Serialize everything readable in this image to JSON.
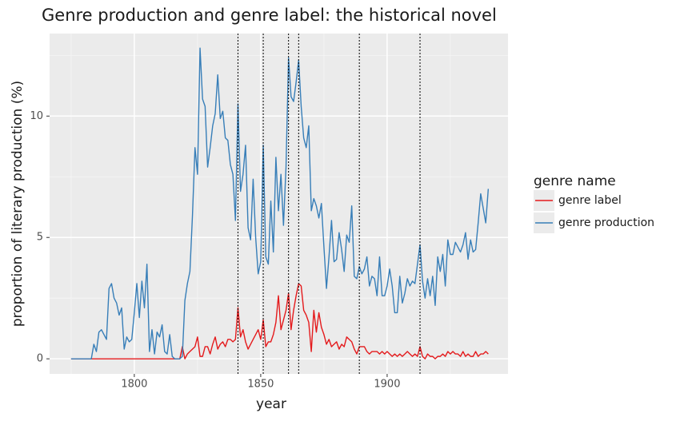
{
  "chart_data": {
    "type": "line",
    "title": "Genre production and genre label: the historical novel",
    "xlabel": "year",
    "ylabel": "proportion of literary production (%)",
    "legend_title": "genre name",
    "legend": "right",
    "grid": true,
    "xlim": [
      1766.5,
      1947.8
    ],
    "ylim": [
      -0.62,
      13.4
    ],
    "xticks": [
      1800,
      1850,
      1900
    ],
    "yticks": [
      0,
      5,
      10
    ],
    "minor_xticks": [
      1775,
      1825,
      1875,
      1925
    ],
    "minor_yticks": [
      2.5,
      7.5,
      12.5
    ],
    "vlines": [
      1841,
      1851,
      1861,
      1865,
      1889,
      1913
    ],
    "x": [
      1775,
      1776,
      1777,
      1778,
      1779,
      1780,
      1781,
      1782,
      1783,
      1784,
      1785,
      1786,
      1787,
      1788,
      1789,
      1790,
      1791,
      1792,
      1793,
      1794,
      1795,
      1796,
      1797,
      1798,
      1799,
      1800,
      1801,
      1802,
      1803,
      1804,
      1805,
      1806,
      1807,
      1808,
      1809,
      1810,
      1811,
      1812,
      1813,
      1814,
      1815,
      1816,
      1817,
      1818,
      1819,
      1820,
      1821,
      1822,
      1823,
      1824,
      1825,
      1826,
      1827,
      1828,
      1829,
      1830,
      1831,
      1832,
      1833,
      1834,
      1835,
      1836,
      1837,
      1838,
      1839,
      1840,
      1841,
      1842,
      1843,
      1844,
      1845,
      1846,
      1847,
      1848,
      1849,
      1850,
      1851,
      1852,
      1853,
      1854,
      1855,
      1856,
      1857,
      1858,
      1859,
      1860,
      1861,
      1862,
      1863,
      1864,
      1865,
      1866,
      1867,
      1868,
      1869,
      1870,
      1871,
      1872,
      1873,
      1874,
      1875,
      1876,
      1877,
      1878,
      1879,
      1880,
      1881,
      1882,
      1883,
      1884,
      1885,
      1886,
      1887,
      1888,
      1889,
      1890,
      1891,
      1892,
      1893,
      1894,
      1895,
      1896,
      1897,
      1898,
      1899,
      1900,
      1901,
      1902,
      1903,
      1904,
      1905,
      1906,
      1907,
      1908,
      1909,
      1910,
      1911,
      1912,
      1913,
      1914,
      1915,
      1916,
      1917,
      1918,
      1919,
      1920,
      1921,
      1922,
      1923,
      1924,
      1925,
      1926,
      1927,
      1928,
      1929,
      1930,
      1931,
      1932,
      1933,
      1934,
      1935,
      1936,
      1937,
      1938,
      1939,
      1940
    ],
    "series": [
      {
        "name": "genre label",
        "color": "#E41A1C",
        "values": [
          0,
          0,
          0,
          0,
          0,
          0,
          0,
          0,
          0,
          0,
          0,
          0,
          0,
          0,
          0,
          0,
          0,
          0,
          0,
          0,
          0,
          0,
          0,
          0,
          0,
          0,
          0,
          0,
          0,
          0,
          0,
          0,
          0,
          0,
          0,
          0,
          0,
          0,
          0,
          0,
          0,
          0,
          0,
          0,
          0.5,
          0,
          0.2,
          0.3,
          0.4,
          0.5,
          0.9,
          0.1,
          0.1,
          0.5,
          0.5,
          0.2,
          0.6,
          0.9,
          0.4,
          0.6,
          0.7,
          0.5,
          0.8,
          0.8,
          0.7,
          0.8,
          2.1,
          0.9,
          1.2,
          0.7,
          0.4,
          0.6,
          0.8,
          1.0,
          1.2,
          0.8,
          1.6,
          0.5,
          0.7,
          0.7,
          1.0,
          1.5,
          2.6,
          1.2,
          1.6,
          2.0,
          2.7,
          1.2,
          2.0,
          2.6,
          3.1,
          3.0,
          2.0,
          1.8,
          1.5,
          0.3,
          2.0,
          1.1,
          1.9,
          1.3,
          1.0,
          0.6,
          0.8,
          0.5,
          0.6,
          0.7,
          0.4,
          0.6,
          0.5,
          0.9,
          0.8,
          0.7,
          0.4,
          0.2,
          0.5,
          0.5,
          0.5,
          0.3,
          0.2,
          0.3,
          0.3,
          0.3,
          0.2,
          0.3,
          0.2,
          0.3,
          0.2,
          0.1,
          0.2,
          0.1,
          0.2,
          0.1,
          0.2,
          0.3,
          0.2,
          0.1,
          0.2,
          0.1,
          0.5,
          0.1,
          0,
          0.2,
          0.1,
          0.1,
          0,
          0.1,
          0.1,
          0.2,
          0.1,
          0.3,
          0.2,
          0.3,
          0.2,
          0.2,
          0.1,
          0.3,
          0.1,
          0.2,
          0.1,
          0.1,
          0.3,
          0.1,
          0.2,
          0.2,
          0.3,
          0.2
        ]
      },
      {
        "name": "genre production",
        "color": "#377EB8",
        "values": [
          0,
          0,
          0,
          0,
          0,
          0,
          0,
          0,
          0,
          0.6,
          0.3,
          1.1,
          1.2,
          1.0,
          0.8,
          2.9,
          3.1,
          2.5,
          2.3,
          1.8,
          2.1,
          0.4,
          0.9,
          0.7,
          0.8,
          1.9,
          3.1,
          1.7,
          3.2,
          2.1,
          3.9,
          0.3,
          1.2,
          0.2,
          1.1,
          0.9,
          1.4,
          0.3,
          0.2,
          1.0,
          0.1,
          0,
          0,
          0,
          0.1,
          2.4,
          3.1,
          3.6,
          5.9,
          8.7,
          7.6,
          12.8,
          10.7,
          10.4,
          7.9,
          8.7,
          9.6,
          10.1,
          11.7,
          9.9,
          10.2,
          9.1,
          9.0,
          8.0,
          7.6,
          5.7,
          10.5,
          6.9,
          7.6,
          8.8,
          5.4,
          4.9,
          7.4,
          5.0,
          3.5,
          4.0,
          8.8,
          4.2,
          3.9,
          6.5,
          4.4,
          8.3,
          6.1,
          7.6,
          5.5,
          7.9,
          12.4,
          10.8,
          10.6,
          11.4,
          12.3,
          10.4,
          9.1,
          8.7,
          9.6,
          6.1,
          6.6,
          6.3,
          5.8,
          6.4,
          4.6,
          2.9,
          4.2,
          5.7,
          4.0,
          4.1,
          5.2,
          4.5,
          3.6,
          5.1,
          4.8,
          6.3,
          3.4,
          3.3,
          3.8,
          3.5,
          3.7,
          4.2,
          3.0,
          3.4,
          3.3,
          2.6,
          4.2,
          2.6,
          2.6,
          3.0,
          3.7,
          3.0,
          1.9,
          1.9,
          3.4,
          2.3,
          2.7,
          3.3,
          3.0,
          3.2,
          3.1,
          3.9,
          4.7,
          3.2,
          2.5,
          3.3,
          2.6,
          3.4,
          2.2,
          4.2,
          3.6,
          4.3,
          3.0,
          4.9,
          4.3,
          4.3,
          4.8,
          4.6,
          4.4,
          4.7,
          5.2,
          4.1,
          4.9,
          4.4,
          4.5,
          5.6,
          6.8,
          6.2,
          5.6,
          7.0
        ]
      }
    ]
  }
}
